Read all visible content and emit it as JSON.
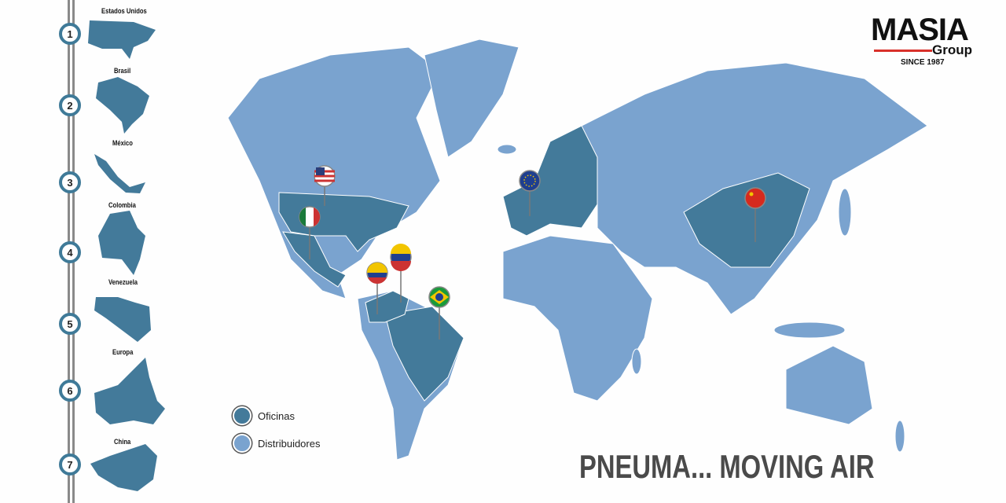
{
  "timeline": [
    {
      "number": "1",
      "country": "Estados Unidos"
    },
    {
      "number": "2",
      "country": "Brasil"
    },
    {
      "number": "3",
      "country": "México"
    },
    {
      "number": "4",
      "country": "Colombia"
    },
    {
      "number": "5",
      "country": "Venezuela"
    },
    {
      "number": "6",
      "country": "Europa"
    },
    {
      "number": "7",
      "country": "China"
    }
  ],
  "logo": {
    "name": "MASIA",
    "sub": "Group",
    "since": "SINCE 1987"
  },
  "legend": [
    {
      "label": "Oficinas",
      "color": "#437a9a"
    },
    {
      "label": "Distribuidores",
      "color": "#7aa3cf"
    }
  ],
  "slogan": "PNEUMA... MOVING AIR",
  "colors": {
    "offices": "#437a9a",
    "distributors": "#7aa3cf",
    "ring": "#3f7a98",
    "accent": "#d9302a"
  },
  "pins": [
    "flag-usa",
    "flag-mexico",
    "flag-venezuela",
    "flag-colombia",
    "flag-brazil",
    "flag-eu",
    "flag-china"
  ]
}
